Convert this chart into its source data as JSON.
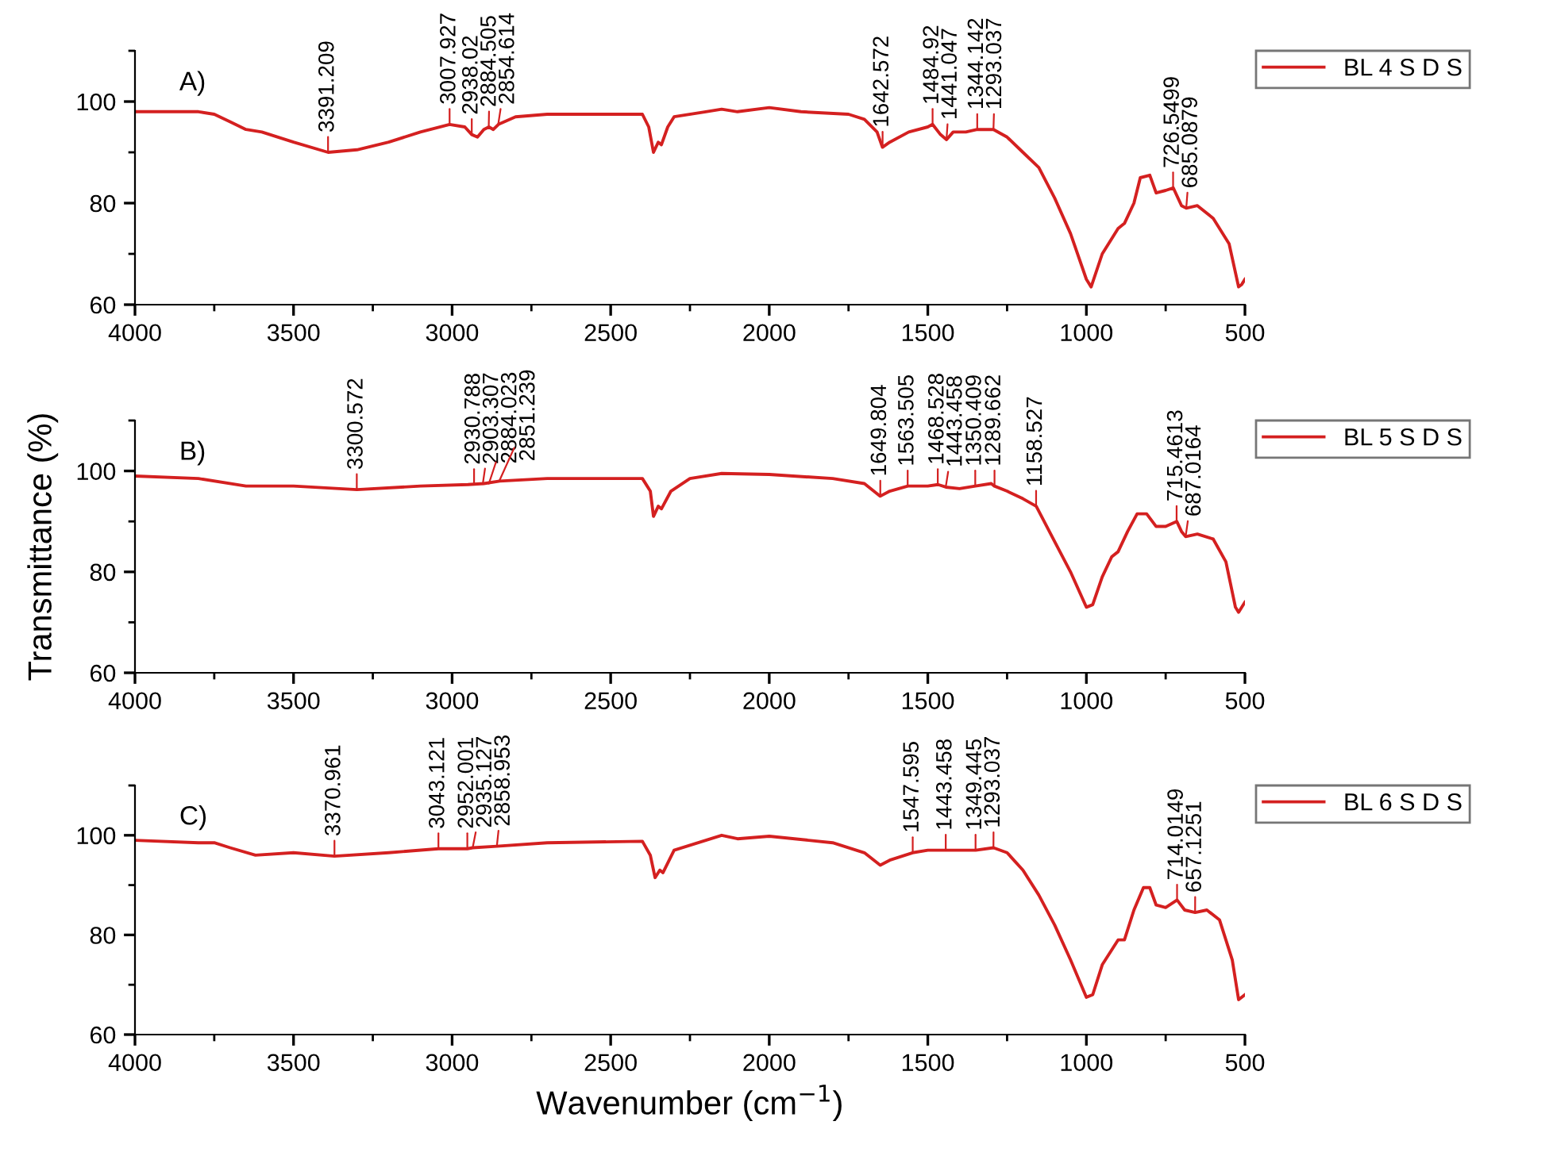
{
  "chart_data": [
    {
      "type": "line",
      "xlim": [
        4000,
        500
      ],
      "xticks": [
        4000,
        3500,
        3000,
        2500,
        2000,
        1500,
        1000,
        500
      ],
      "ylim": [
        60,
        110
      ],
      "yticks": [
        60,
        80,
        100
      ],
      "grid": false,
      "legend": "right",
      "series": [
        {
          "name": "BL 4 S D S",
          "color": "#d42020",
          "x": [
            4000,
            3800,
            3750,
            3700,
            3650,
            3600,
            3500,
            3391,
            3300,
            3200,
            3100,
            3008,
            2960,
            2938,
            2920,
            2900,
            2884,
            2870,
            2854,
            2800,
            2700,
            2500,
            2400,
            2380,
            2365,
            2350,
            2340,
            2320,
            2300,
            2200,
            2150,
            2100,
            2000,
            1900,
            1750,
            1700,
            1660,
            1643,
            1620,
            1560,
            1500,
            1485,
            1460,
            1441,
            1420,
            1380,
            1344,
            1293,
            1250,
            1200,
            1150,
            1100,
            1050,
            1000,
            985,
            950,
            900,
            880,
            850,
            830,
            800,
            780,
            750,
            726,
            700,
            685,
            650,
            600,
            550,
            520,
            510,
            500
          ],
          "values": [
            98,
            98,
            97.5,
            96,
            94.5,
            94,
            92,
            90,
            90.5,
            92,
            94,
            95.5,
            95,
            93.5,
            93,
            94.5,
            95,
            94.5,
            95.5,
            97,
            97.5,
            97.5,
            97.5,
            95,
            90,
            92,
            91.5,
            95,
            97,
            98,
            98.5,
            98,
            98.8,
            98,
            97.5,
            96.5,
            94,
            91,
            92,
            94,
            95,
            95.5,
            93.5,
            92.5,
            94,
            94,
            94.5,
            94.5,
            93,
            90,
            87,
            81,
            74,
            65,
            63.5,
            70,
            75,
            76,
            80,
            85,
            85.5,
            82,
            82.5,
            83,
            79.5,
            79,
            79.5,
            77,
            72,
            63.5,
            64,
            65
          ]
        }
      ],
      "annotations": [
        "A)",
        {
          "text": "3391.209",
          "x": 3391.209,
          "y": 90
        },
        {
          "text": "3007.927",
          "x": 3007.927,
          "y": 95.5
        },
        {
          "text": "2938.02",
          "x": 2938.02,
          "y": 93.5
        },
        {
          "text": "2884.505",
          "x": 2884.505,
          "y": 95
        },
        {
          "text": "2854.614",
          "x": 2854.614,
          "y": 95.5
        },
        {
          "text": "1642.572",
          "x": 1642.572,
          "y": 91
        },
        {
          "text": "1484.92",
          "x": 1484.92,
          "y": 95.5
        },
        {
          "text": "1441.047",
          "x": 1441.047,
          "y": 92.5
        },
        {
          "text": "1344.142",
          "x": 1344.142,
          "y": 94.5
        },
        {
          "text": "1293.037",
          "x": 1293.037,
          "y": 94.5
        },
        {
          "text": "726.5499",
          "x": 726.5499,
          "y": 83
        },
        {
          "text": "685.0879",
          "x": 685.0879,
          "y": 79
        }
      ]
    },
    {
      "type": "line",
      "ylabel": "Transmittance (%)",
      "xlim": [
        4000,
        500
      ],
      "xticks": [
        4000,
        3500,
        3000,
        2500,
        2000,
        1500,
        1000,
        500
      ],
      "ylim": [
        60,
        110
      ],
      "yticks": [
        60,
        80,
        100
      ],
      "grid": false,
      "legend": "right",
      "series": [
        {
          "name": "BL 5 S D S",
          "color": "#d42020",
          "x": [
            4000,
            3800,
            3650,
            3500,
            3300,
            3100,
            2950,
            2900,
            2850,
            2700,
            2400,
            2375,
            2365,
            2350,
            2340,
            2310,
            2250,
            2150,
            2000,
            1800,
            1700,
            1650,
            1620,
            1563,
            1500,
            1468,
            1443,
            1400,
            1350,
            1300,
            1290,
            1250,
            1200,
            1158,
            1100,
            1050,
            1000,
            980,
            950,
            920,
            900,
            870,
            840,
            810,
            780,
            750,
            715,
            700,
            687,
            650,
            600,
            560,
            530,
            520,
            500
          ],
          "values": [
            99,
            98.5,
            97,
            97,
            96.3,
            97,
            97.3,
            97.5,
            98,
            98.5,
            98.5,
            96,
            91,
            93,
            92.5,
            96,
            98.5,
            99.5,
            99.3,
            98.5,
            97.5,
            95,
            96,
            97,
            97,
            97.3,
            96.8,
            96.5,
            97,
            97.5,
            97,
            96,
            94.5,
            93,
            86,
            80,
            73,
            73.5,
            79,
            83,
            84,
            88,
            91.5,
            91.5,
            89,
            89,
            90,
            88,
            87,
            87.5,
            86.5,
            82,
            73,
            72,
            74
          ]
        }
      ],
      "annotations": [
        "B)",
        {
          "text": "3300.572",
          "x": 3300.572,
          "y": 96.3
        },
        {
          "text": "2930.788",
          "x": 2930.788,
          "y": 97.3
        },
        {
          "text": "2903.307",
          "x": 2903.307,
          "y": 97.4
        },
        {
          "text": "2884.023",
          "x": 2884.023,
          "y": 97.5
        },
        {
          "text": "2851.239",
          "x": 2851.239,
          "y": 98
        },
        {
          "text": "1649.804",
          "x": 1649.804,
          "y": 95
        },
        {
          "text": "1563.505",
          "x": 1563.505,
          "y": 97
        },
        {
          "text": "1468.528",
          "x": 1468.528,
          "y": 97.3
        },
        {
          "text": "1443.458",
          "x": 1443.458,
          "y": 96.8
        },
        {
          "text": "1350.409",
          "x": 1350.409,
          "y": 97
        },
        {
          "text": "1289.662",
          "x": 1289.662,
          "y": 97
        },
        {
          "text": "1158.527",
          "x": 1158.527,
          "y": 93
        },
        {
          "text": "715.4613",
          "x": 715.4613,
          "y": 90
        },
        {
          "text": "687.0164",
          "x": 687.0164,
          "y": 87
        }
      ]
    },
    {
      "type": "line",
      "xlabel": "Wavenumber (cm$^{−1}$)",
      "xlim": [
        4000,
        500
      ],
      "xticks": [
        4000,
        3500,
        3000,
        2500,
        2000,
        1500,
        1000,
        500
      ],
      "ylim": [
        60,
        110
      ],
      "yticks": [
        60,
        80,
        100
      ],
      "grid": false,
      "legend": "right",
      "series": [
        {
          "name": "BL 6 S D S",
          "color": "#d42020",
          "x": [
            4000,
            3800,
            3750,
            3700,
            3620,
            3500,
            3371,
            3200,
            3043,
            2952,
            2935,
            2859,
            2700,
            2400,
            2375,
            2360,
            2345,
            2335,
            2300,
            2200,
            2150,
            2100,
            2000,
            1800,
            1700,
            1650,
            1620,
            1548,
            1500,
            1443,
            1400,
            1349,
            1293,
            1250,
            1200,
            1150,
            1100,
            1050,
            1000,
            980,
            950,
            900,
            880,
            850,
            820,
            800,
            780,
            750,
            714,
            690,
            657,
            620,
            580,
            540,
            520,
            500
          ],
          "values": [
            99,
            98.5,
            98.5,
            97.5,
            96,
            96.5,
            95.8,
            96.5,
            97.3,
            97.3,
            97.5,
            97.8,
            98.5,
            98.8,
            96,
            91.5,
            93,
            92.5,
            97,
            99,
            100,
            99.3,
            99.8,
            98.5,
            96.5,
            94,
            95,
            96.5,
            97,
            97,
            97,
            97,
            97.5,
            96.5,
            93,
            88,
            82,
            75,
            67.5,
            68,
            74,
            79,
            79,
            85,
            89.5,
            89.5,
            86,
            85.5,
            87,
            85,
            84.5,
            85,
            83,
            75,
            67,
            68
          ]
        }
      ],
      "annotations": [
        "C)",
        {
          "text": "3370.961",
          "x": 3370.961,
          "y": 95.8
        },
        {
          "text": "3043.121",
          "x": 3043.121,
          "y": 97.3
        },
        {
          "text": "2952.001",
          "x": 2952.001,
          "y": 97.3
        },
        {
          "text": "2935.127",
          "x": 2935.127,
          "y": 97.5
        },
        {
          "text": "2858.953",
          "x": 2858.953,
          "y": 97.8
        },
        {
          "text": "1547.595",
          "x": 1547.595,
          "y": 96.5
        },
        {
          "text": "1443.458",
          "x": 1443.458,
          "y": 97
        },
        {
          "text": "1349.445",
          "x": 1349.445,
          "y": 97
        },
        {
          "text": "1293.037",
          "x": 1293.037,
          "y": 97.5
        },
        {
          "text": "714.0149",
          "x": 714.0149,
          "y": 87
        },
        {
          "text": "657.1251",
          "x": 657.1251,
          "y": 84.5
        }
      ]
    }
  ]
}
